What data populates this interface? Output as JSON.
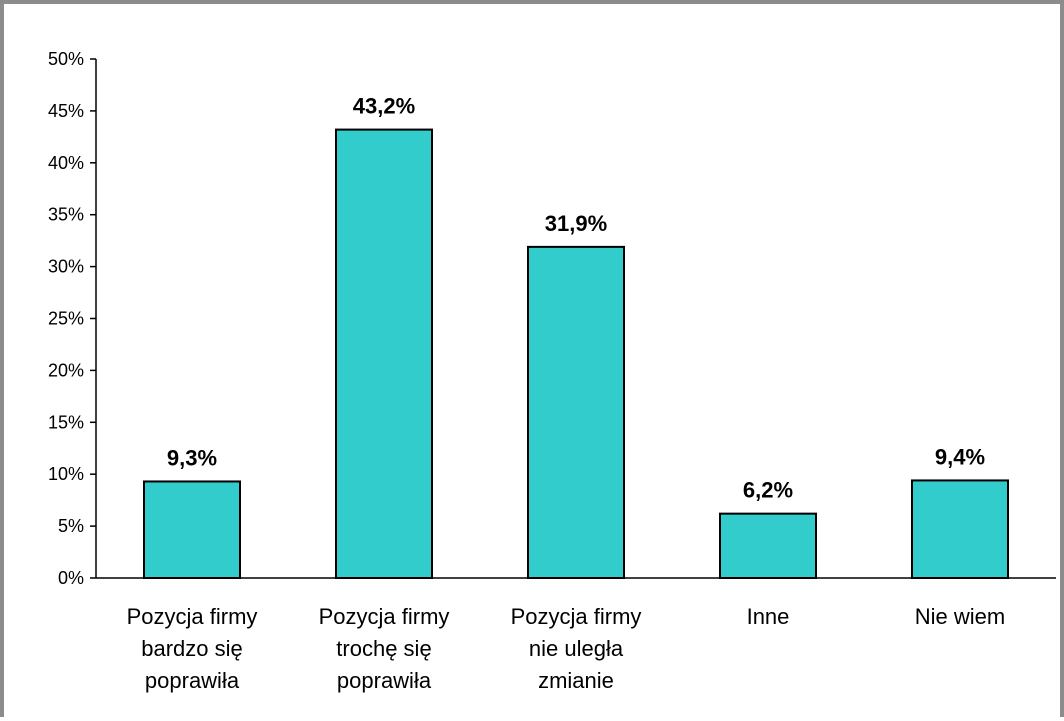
{
  "chart_data": {
    "type": "bar",
    "categories": [
      [
        "Pozycja firmy",
        "bardzo się",
        "poprawiła"
      ],
      [
        "Pozycja firmy",
        "trochę się",
        "poprawiła"
      ],
      [
        "Pozycja firmy",
        "nie uległa",
        "zmianie"
      ],
      [
        "Inne"
      ],
      [
        "Nie wiem"
      ]
    ],
    "values": [
      9.3,
      43.2,
      31.9,
      6.2,
      9.4
    ],
    "data_labels": [
      "9,3%",
      "43,2%",
      "31,9%",
      "6,2%",
      "9,4%"
    ],
    "y_ticks": [
      "0%",
      "5%",
      "10%",
      "15%",
      "20%",
      "25%",
      "30%",
      "35%",
      "40%",
      "45%",
      "50%"
    ],
    "ylim": [
      0,
      50
    ],
    "title": "",
    "xlabel": "",
    "ylabel": "",
    "grid": false,
    "legend": "none",
    "bar_color": "#33cccc",
    "bar_edge_color": "#000000"
  }
}
